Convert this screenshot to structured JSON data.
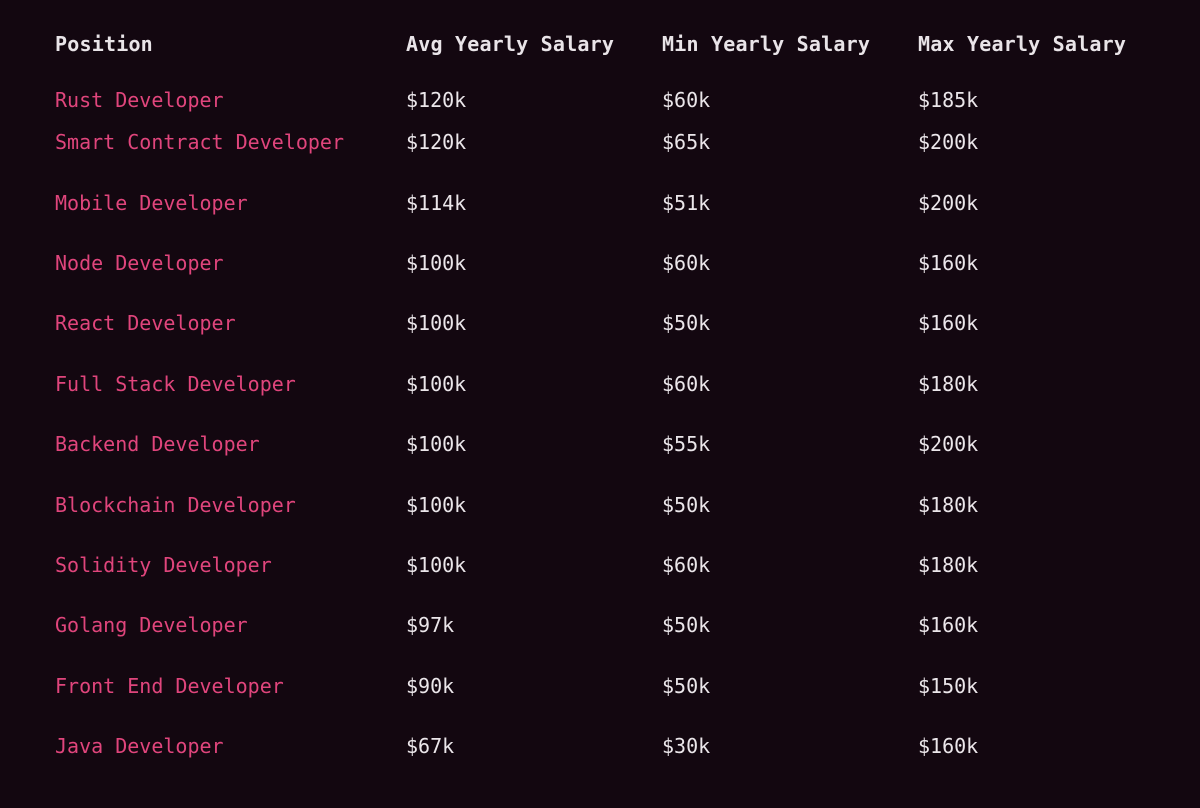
{
  "table": {
    "headers": {
      "position": "Position",
      "avg": "Avg Yearly Salary",
      "min": "Min Yearly Salary",
      "max": "Max Yearly Salary"
    },
    "rows": [
      {
        "position": "Rust Developer",
        "avg": "$120k",
        "min": "$60k",
        "max": "$185k"
      },
      {
        "position": "Smart Contract Developer",
        "avg": "$120k",
        "min": "$65k",
        "max": "$200k"
      },
      {
        "position": "Mobile Developer",
        "avg": "$114k",
        "min": "$51k",
        "max": "$200k"
      },
      {
        "position": "Node Developer",
        "avg": "$100k",
        "min": "$60k",
        "max": "$160k"
      },
      {
        "position": "React Developer",
        "avg": "$100k",
        "min": "$50k",
        "max": "$160k"
      },
      {
        "position": "Full Stack Developer",
        "avg": "$100k",
        "min": "$60k",
        "max": "$180k"
      },
      {
        "position": "Backend Developer",
        "avg": "$100k",
        "min": "$55k",
        "max": "$200k"
      },
      {
        "position": "Blockchain Developer",
        "avg": "$100k",
        "min": "$50k",
        "max": "$180k"
      },
      {
        "position": "Solidity Developer",
        "avg": "$100k",
        "min": "$60k",
        "max": "$180k"
      },
      {
        "position": "Golang Developer",
        "avg": "$97k",
        "min": "$50k",
        "max": "$160k"
      },
      {
        "position": "Front End Developer",
        "avg": "$90k",
        "min": "$50k",
        "max": "$150k"
      },
      {
        "position": "Java Developer",
        "avg": "$67k",
        "min": "$30k",
        "max": "$160k"
      }
    ]
  },
  "colors": {
    "background": "#130710",
    "accent": "#e0457c",
    "text": "#ebe6ea"
  }
}
